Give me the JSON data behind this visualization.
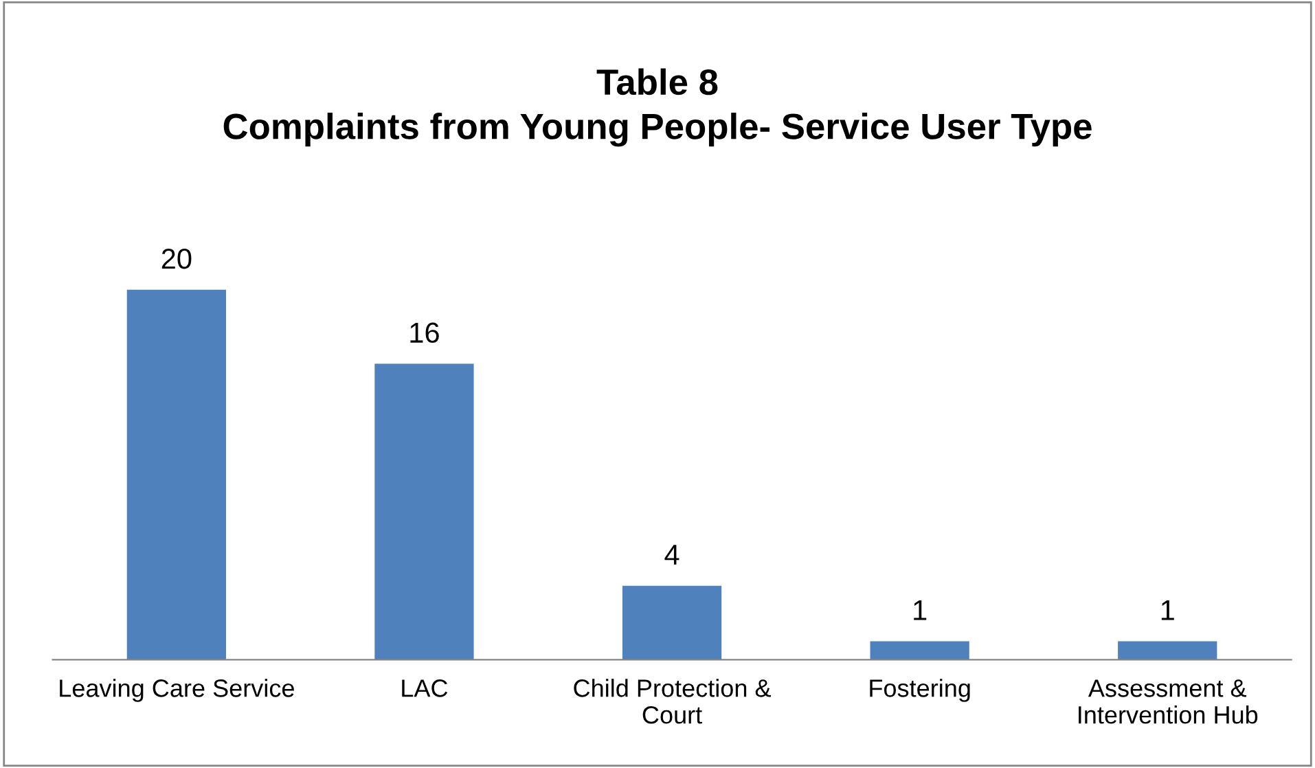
{
  "chart_data": {
    "type": "bar",
    "title": "Table 8\nComplaints from Young People- Service User Type",
    "categories": [
      "Leaving Care Service",
      "LAC",
      "Child Protection &\nCourt",
      "Fostering",
      "Assessment &\nIntervention Hub"
    ],
    "values": [
      20,
      16,
      4,
      1,
      1
    ],
    "color": "#4f81bd",
    "data_labels": true,
    "grid": false,
    "legend": false
  }
}
